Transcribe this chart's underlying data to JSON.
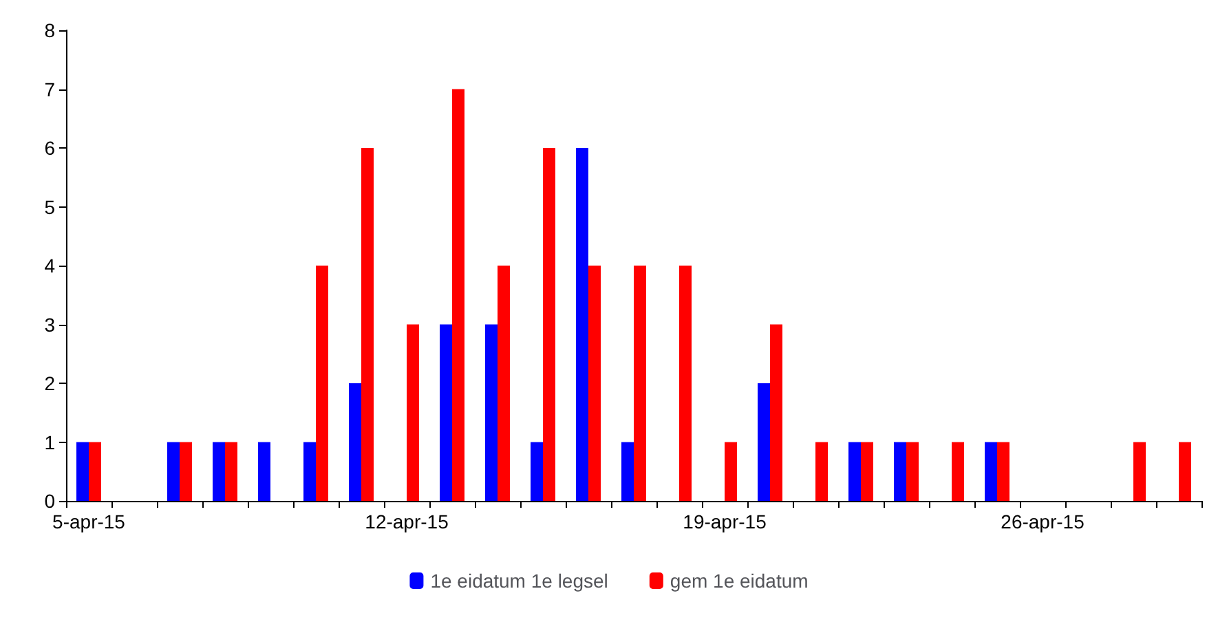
{
  "chart_data": {
    "type": "bar",
    "categories": [
      "5-apr-15",
      null,
      null,
      null,
      null,
      null,
      null,
      "12-apr-15",
      null,
      null,
      null,
      null,
      null,
      null,
      "19-apr-15",
      null,
      null,
      null,
      null,
      null,
      null,
      "26-apr-15",
      null,
      null,
      null
    ],
    "series": [
      {
        "name": "1e eidatum 1e legsel",
        "color": "#0000ff",
        "values": [
          1,
          0,
          1,
          1,
          1,
          1,
          2,
          0,
          3,
          3,
          1,
          6,
          1,
          0,
          0,
          2,
          0,
          1,
          1,
          0,
          1,
          0,
          0,
          0,
          0
        ]
      },
      {
        "name": "gem 1e eidatum",
        "color": "#ff0000",
        "values": [
          1,
          0,
          1,
          1,
          0,
          4,
          6,
          3,
          7,
          4,
          6,
          4,
          4,
          4,
          1,
          3,
          1,
          1,
          1,
          1,
          1,
          0,
          0,
          1,
          1
        ]
      }
    ],
    "ylim": [
      0,
      8
    ],
    "yticks": [
      0,
      1,
      2,
      3,
      4,
      5,
      6,
      7,
      8
    ],
    "grid": false,
    "legend": "bottom"
  }
}
